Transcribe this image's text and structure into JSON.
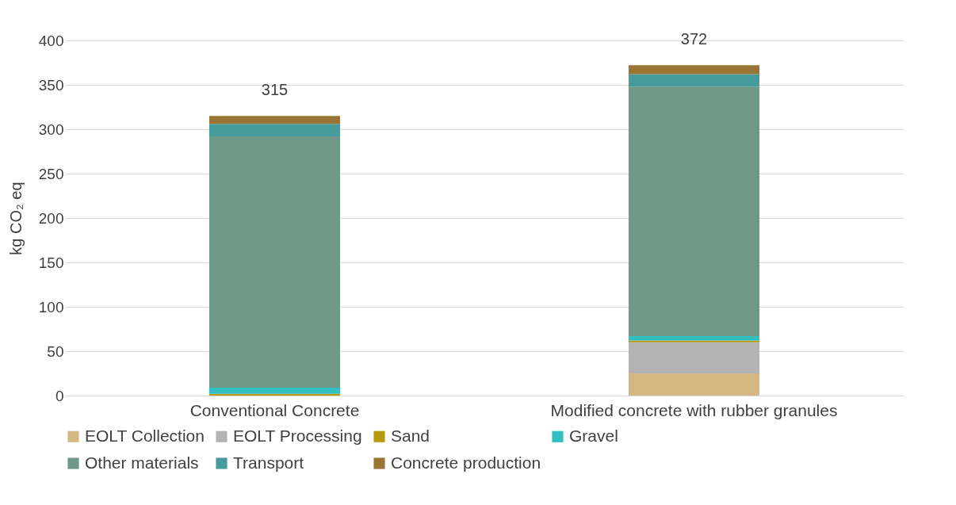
{
  "chart_data": {
    "type": "bar",
    "stacked": true,
    "ylabel": "kg CO₂ eq",
    "categories": [
      "Conventional Concrete",
      "Modified concrete with rubber granules"
    ],
    "series": [
      {
        "name": "EOLT Collection",
        "color": "#d4b882",
        "values": [
          0,
          25
        ]
      },
      {
        "name": "EOLT Processing",
        "color": "#b3b3b3",
        "values": [
          0,
          35
        ]
      },
      {
        "name": "Sand",
        "color": "#b59a0e",
        "values": [
          2,
          2
        ]
      },
      {
        "name": "Gravel",
        "color": "#33bfc1",
        "values": [
          7,
          5
        ]
      },
      {
        "name": "Other materials",
        "color": "#6e9989",
        "values": [
          283,
          281
        ]
      },
      {
        "name": "Transport",
        "color": "#469b9c",
        "values": [
          14,
          14
        ]
      },
      {
        "name": "Concrete production",
        "color": "#9a7535",
        "values": [
          9,
          10
        ]
      }
    ],
    "totals": [
      "315",
      "372"
    ],
    "ylim": [
      0,
      400
    ],
    "yticks": [
      0,
      50,
      100,
      150,
      200,
      250,
      300,
      350,
      400
    ],
    "grid": "y",
    "legend": "bottom"
  }
}
